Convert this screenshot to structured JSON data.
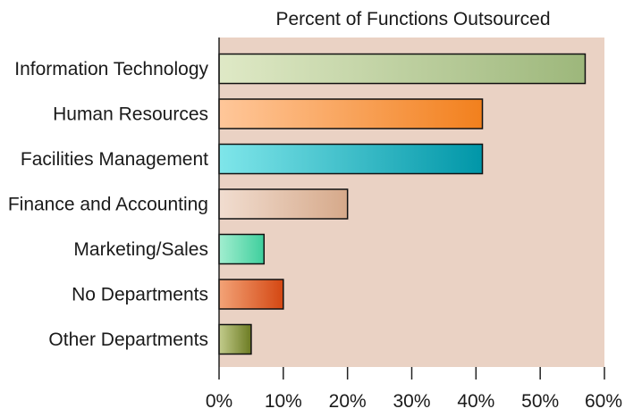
{
  "chart_data": {
    "type": "bar",
    "orientation": "horizontal",
    "title": "Percent of Functions Outsourced",
    "xlabel": "",
    "ylabel": "",
    "categories": [
      "Information Technology",
      "Human Resources",
      "Facilities Management",
      "Finance and Accounting",
      "Marketing/Sales",
      "No Departments",
      "Other Departments"
    ],
    "values": [
      57,
      41,
      41,
      20,
      7,
      10,
      5
    ],
    "xlim": [
      0,
      60
    ],
    "xticks": [
      0,
      10,
      20,
      30,
      40,
      50,
      60
    ],
    "xtick_labels": [
      "0%",
      "10%",
      "20%",
      "30%",
      "40%",
      "50%",
      "60%"
    ],
    "grid": false,
    "legend": "none",
    "colors": {
      "plot_background": "#ead2c4",
      "bars": [
        [
          "#dfe9c6",
          "#9db77b"
        ],
        [
          "#ffc79a",
          "#f2801d"
        ],
        [
          "#7fe6ea",
          "#0096a8"
        ],
        [
          "#f1ddd0",
          "#d6a98a"
        ],
        [
          "#a2eed0",
          "#3fcf9d"
        ],
        [
          "#f3a377",
          "#d44712"
        ],
        [
          "#c3cc8c",
          "#6c7b22"
        ]
      ]
    }
  }
}
